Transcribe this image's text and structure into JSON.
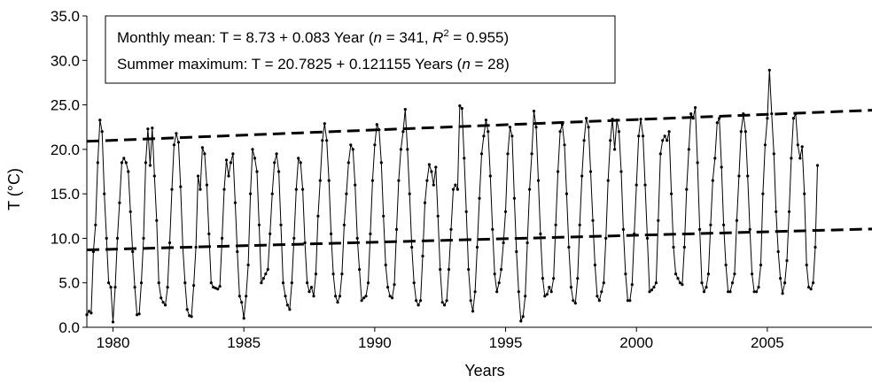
{
  "chart_data": {
    "type": "line",
    "xlabel": "Years",
    "ylabel": "T (°C)",
    "ylim": [
      0,
      35
    ],
    "xlim": [
      1979.0,
      2009.0
    ],
    "y_ticks": [
      "0.0",
      "5.0",
      "10.0",
      "15.0",
      "20.0",
      "25.0",
      "30.0",
      "35.0"
    ],
    "x_ticks": [
      "1980",
      "1985",
      "1990",
      "1995",
      "2000",
      "2005"
    ],
    "grid": false,
    "annotation": {
      "line1": {
        "a": "Monthly mean: T = 8.73 + 0.083 Year (",
        "n": "n",
        "b": " = 341, ",
        "r": "R",
        "sup": "2",
        "c": " = 0.955)"
      },
      "line2": {
        "a": "Summer maximum: T = 20.7825 + 0.121155 Years (",
        "n": "n",
        "b": " = 28)"
      }
    },
    "series": [
      {
        "values": [
          1.4,
          1.8,
          1.6,
          8.5,
          11.5,
          18.5,
          23.3,
          22.0,
          15.0,
          10.0,
          5.0,
          4.5,
          0.6,
          4.5,
          10.0,
          14.0,
          18.5,
          19.0,
          18.5,
          17.5,
          13.0,
          8.5,
          4.5,
          1.4,
          1.5,
          5.0,
          10.0,
          18.5,
          22.3,
          18.2,
          22.4,
          17.0,
          12.0,
          5.0,
          3.3,
          2.8,
          2.5,
          4.5,
          9.5,
          15.5,
          20.5,
          21.8,
          20.8,
          15.8,
          9.0,
          5.0,
          2.0,
          1.3,
          1.2,
          4.7,
          9.0,
          17.0,
          15.5,
          20.2,
          19.5,
          16.0,
          10.5,
          5.0,
          4.5,
          4.4,
          4.3,
          4.6,
          10.0,
          15.5,
          18.8,
          17.0,
          18.5,
          19.5,
          14.0,
          8.5,
          3.5,
          2.8,
          1.0,
          3.5,
          7.0,
          15.0,
          20.0,
          19.0,
          17.5,
          11.5,
          5.0,
          5.5,
          6.0,
          6.5,
          10.5,
          15.0,
          18.5,
          19.5,
          17.5,
          11.5,
          5.0,
          3.5,
          2.5,
          2.0,
          5.0,
          10.0,
          15.5,
          19.0,
          18.5,
          15.5,
          9.5,
          5.0,
          4.0,
          4.5,
          3.5,
          6.0,
          12.5,
          16.5,
          21.0,
          22.9,
          21.0,
          16.5,
          10.5,
          6.0,
          3.5,
          2.8,
          3.5,
          6.0,
          11.5,
          15.0,
          18.5,
          20.5,
          20.0,
          16.0,
          10.0,
          6.5,
          3.0,
          3.3,
          3.5,
          5.0,
          10.5,
          16.5,
          20.5,
          22.8,
          22.2,
          18.5,
          12.5,
          7.0,
          4.5,
          3.5,
          3.3,
          4.8,
          11.0,
          16.5,
          20.0,
          22.0,
          24.5,
          20.0,
          15.0,
          9.0,
          5.0,
          3.0,
          2.5,
          3.0,
          8.0,
          14.0,
          16.5,
          18.3,
          17.5,
          16.0,
          18.0,
          12.5,
          6.5,
          2.8,
          2.5,
          3.0,
          6.5,
          11.0,
          15.5,
          16.0,
          15.5,
          24.9,
          24.6,
          19.0,
          13.0,
          6.5,
          3.0,
          1.8,
          4.0,
          9.0,
          14.5,
          19.5,
          21.5,
          23.3,
          22.0,
          17.0,
          11.0,
          6.0,
          4.0,
          5.0,
          6.5,
          9.5,
          13.0,
          19.5,
          22.5,
          21.5,
          14.5,
          8.5,
          4.0,
          0.7,
          1.2,
          3.5,
          9.5,
          15.5,
          19.5,
          24.3,
          22.5,
          16.5,
          10.5,
          5.5,
          3.5,
          3.7,
          4.5,
          4.0,
          5.5,
          11.5,
          17.5,
          22.0,
          22.8,
          20.5,
          15.0,
          9.0,
          4.5,
          3.0,
          2.7,
          5.5,
          11.5,
          17.0,
          21.0,
          23.5,
          22.5,
          17.5,
          12.0,
          7.0,
          3.5,
          3.0,
          4.0,
          5.0,
          10.0,
          16.5,
          21.0,
          23.4,
          20.0,
          23.3,
          22.0,
          17.5,
          11.0,
          6.0,
          3.0,
          3.0,
          4.8,
          10.5,
          16.0,
          21.5,
          23.4,
          21.5,
          16.0,
          10.0,
          4.0,
          4.2,
          4.5,
          5.0,
          12.0,
          19.5,
          21.0,
          21.5,
          21.0,
          22.0,
          15.0,
          9.0,
          6.0,
          5.5,
          5.0,
          4.8,
          9.0,
          15.5,
          20.0,
          24.0,
          23.5,
          24.7,
          18.5,
          11.0,
          5.0,
          4.0,
          4.5,
          6.0,
          11.5,
          16.5,
          19.0,
          23.0,
          23.5,
          18.0,
          11.5,
          7.0,
          4.0,
          4.0,
          5.0,
          6.0,
          12.0,
          17.0,
          22.0,
          24.0,
          22.0,
          17.0,
          11.0,
          6.0,
          4.0,
          4.0,
          4.5,
          7.0,
          15.0,
          20.5,
          23.5,
          28.9,
          24.0,
          19.5,
          13.0,
          8.5,
          5.5,
          3.8,
          5.0,
          7.5,
          13.0,
          19.0,
          23.5,
          24.0,
          20.5,
          19.0,
          20.3,
          15.0,
          7.0,
          4.5,
          4.3,
          5.0,
          9.0,
          18.2
        ]
      }
    ],
    "trend_lines": [
      {
        "name": "Summer maximum",
        "y_start": 20.9,
        "y_end": 24.4
      },
      {
        "name": "Monthly mean",
        "y_start": 8.7,
        "y_end": 11.05
      }
    ]
  }
}
